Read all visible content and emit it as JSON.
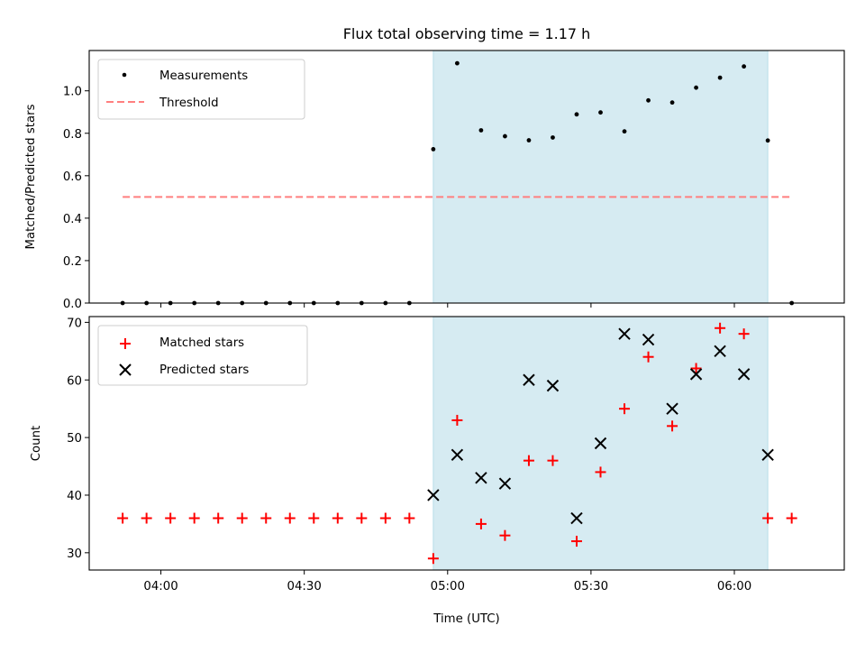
{
  "colors": {
    "measurement": "#000000",
    "threshold": "#ff7f7f",
    "matched": "#ff0000",
    "predicted": "#000000",
    "span": "#add8e6"
  },
  "chart_data": [
    {
      "type": "scatter",
      "title": "Flux total observing time = 1.17 h",
      "xlabel": "",
      "ylabel": "Matched/Predicted stars",
      "xlim": [
        "03:45",
        "06:23"
      ],
      "ylim": [
        0,
        1.19
      ],
      "y_ticks": [
        "0.0",
        "0.2",
        "0.4",
        "0.6",
        "0.8",
        "1.0"
      ],
      "grid": false,
      "legend": "upper left",
      "shaded_span": [
        "04:57",
        "06:07"
      ],
      "series": [
        {
          "name": "Measurements",
          "marker": "dot",
          "x": [
            "03:52",
            "03:57",
            "04:02",
            "04:07",
            "04:12",
            "04:17",
            "04:22",
            "04:27",
            "04:32",
            "04:37",
            "04:42",
            "04:47",
            "04:52",
            "04:57",
            "05:02",
            "05:07",
            "05:12",
            "05:17",
            "05:22",
            "05:27",
            "05:32",
            "05:37",
            "05:42",
            "05:47",
            "05:52",
            "05:57",
            "06:02",
            "06:07",
            "06:12"
          ],
          "y": [
            0,
            0,
            0,
            0,
            0,
            0,
            0,
            0,
            0,
            0,
            0,
            0,
            0,
            0.725,
            1.13,
            0.814,
            0.786,
            0.767,
            0.78,
            0.889,
            0.898,
            0.809,
            0.955,
            0.945,
            1.015,
            1.062,
            1.115,
            0.766,
            0
          ]
        },
        {
          "name": "Threshold",
          "style": "dashed",
          "x": [
            "03:52",
            "06:12"
          ],
          "y": [
            0.5,
            0.5
          ]
        }
      ]
    },
    {
      "type": "scatter",
      "xlabel": "Time (UTC)",
      "ylabel": "Count",
      "xlim": [
        "03:45",
        "06:23"
      ],
      "ylim": [
        27,
        71
      ],
      "x_ticks": [
        "04:00",
        "04:30",
        "05:00",
        "05:30",
        "06:00"
      ],
      "y_ticks": [
        "30",
        "40",
        "50",
        "60",
        "70"
      ],
      "grid": false,
      "legend": "upper left",
      "shaded_span": [
        "04:57",
        "06:07"
      ],
      "series": [
        {
          "name": "Matched stars",
          "marker": "plus",
          "x": [
            "03:52",
            "03:57",
            "04:02",
            "04:07",
            "04:12",
            "04:17",
            "04:22",
            "04:27",
            "04:32",
            "04:37",
            "04:42",
            "04:47",
            "04:52",
            "04:57",
            "05:02",
            "05:07",
            "05:12",
            "05:17",
            "05:22",
            "05:27",
            "05:32",
            "05:37",
            "05:42",
            "05:47",
            "05:52",
            "05:57",
            "06:02",
            "06:07",
            "06:12"
          ],
          "y": [
            36,
            36,
            36,
            36,
            36,
            36,
            36,
            36,
            36,
            36,
            36,
            36,
            36,
            29,
            53,
            35,
            33,
            46,
            46,
            32,
            44,
            55,
            64,
            52,
            62,
            69,
            68,
            36,
            36
          ]
        },
        {
          "name": "Predicted stars",
          "marker": "x",
          "x": [
            "04:57",
            "05:02",
            "05:07",
            "05:12",
            "05:17",
            "05:22",
            "05:27",
            "05:32",
            "05:37",
            "05:42",
            "05:47",
            "05:52",
            "05:57",
            "06:02",
            "06:07"
          ],
          "y": [
            40,
            47,
            43,
            42,
            60,
            59,
            36,
            49,
            68,
            67,
            55,
            61,
            65,
            61,
            47
          ]
        }
      ]
    }
  ]
}
